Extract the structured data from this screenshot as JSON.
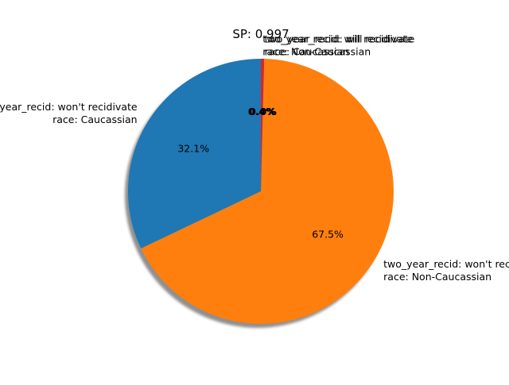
{
  "chart_data": {
    "type": "pie",
    "title": "SP: 0.997",
    "start_angle_deg": 90,
    "shadow": true,
    "slices": [
      {
        "label_line1": "two_year_recid: won't recidivate",
        "label_line2": "race: Caucassian",
        "value": 32.1,
        "pct_label": "32.1%",
        "color": "#1f77b4"
      },
      {
        "label_line1": "two_year_recid: won't recidivate",
        "label_line2": "race: Non-Caucassian",
        "value": 67.5,
        "pct_label": "67.5%",
        "color": "#ff7f0e"
      },
      {
        "label_line1": "two_year_recid: will recidivate",
        "label_line2": "race: Caucassian",
        "value": 0.0,
        "pct_label": "0.0%",
        "color": "#2ca02c"
      },
      {
        "label_line1": "two_year_recid: will recidivate",
        "label_line2": "race: Non-Caucassian",
        "value": 0.4,
        "pct_label": "0.4%",
        "color": "#d62728"
      }
    ]
  }
}
